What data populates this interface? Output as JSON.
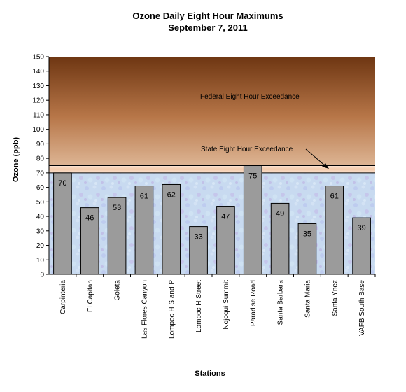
{
  "chart_data": {
    "type": "bar",
    "title": "Ozone Daily Eight Hour Maximums",
    "subtitle": "September 7, 2011",
    "xlabel": "Stations",
    "ylabel": "Ozone (ppb)",
    "ylim": [
      0,
      150
    ],
    "yticks": [
      0,
      10,
      20,
      30,
      40,
      50,
      60,
      70,
      80,
      90,
      100,
      110,
      120,
      130,
      140,
      150
    ],
    "categories": [
      "Carpinteria",
      "El Capitan",
      "Goleta",
      "Las Flores Canyon",
      "Lompoc H S and P",
      "Lompoc H Street",
      "Nojoqui Summit",
      "Paradise Road",
      "Santa Barbara",
      "Santa Maria",
      "Santa Ynez",
      "VAFB South Base"
    ],
    "values": [
      70,
      46,
      53,
      61,
      62,
      33,
      47,
      75,
      49,
      35,
      61,
      39
    ],
    "thresholds": [
      {
        "label": "State Eight Hour Exceedance",
        "value": 70
      },
      {
        "label": "Federal Eight Hour Exceedance",
        "value": 75
      }
    ],
    "colors": {
      "bar": "#9b9b9b",
      "bar_border": "#000000",
      "below_state": "#c8daf0",
      "between_limits": "#f4d6c2",
      "top_band": "#6e3612",
      "bottom_band": "#ddb594"
    }
  }
}
